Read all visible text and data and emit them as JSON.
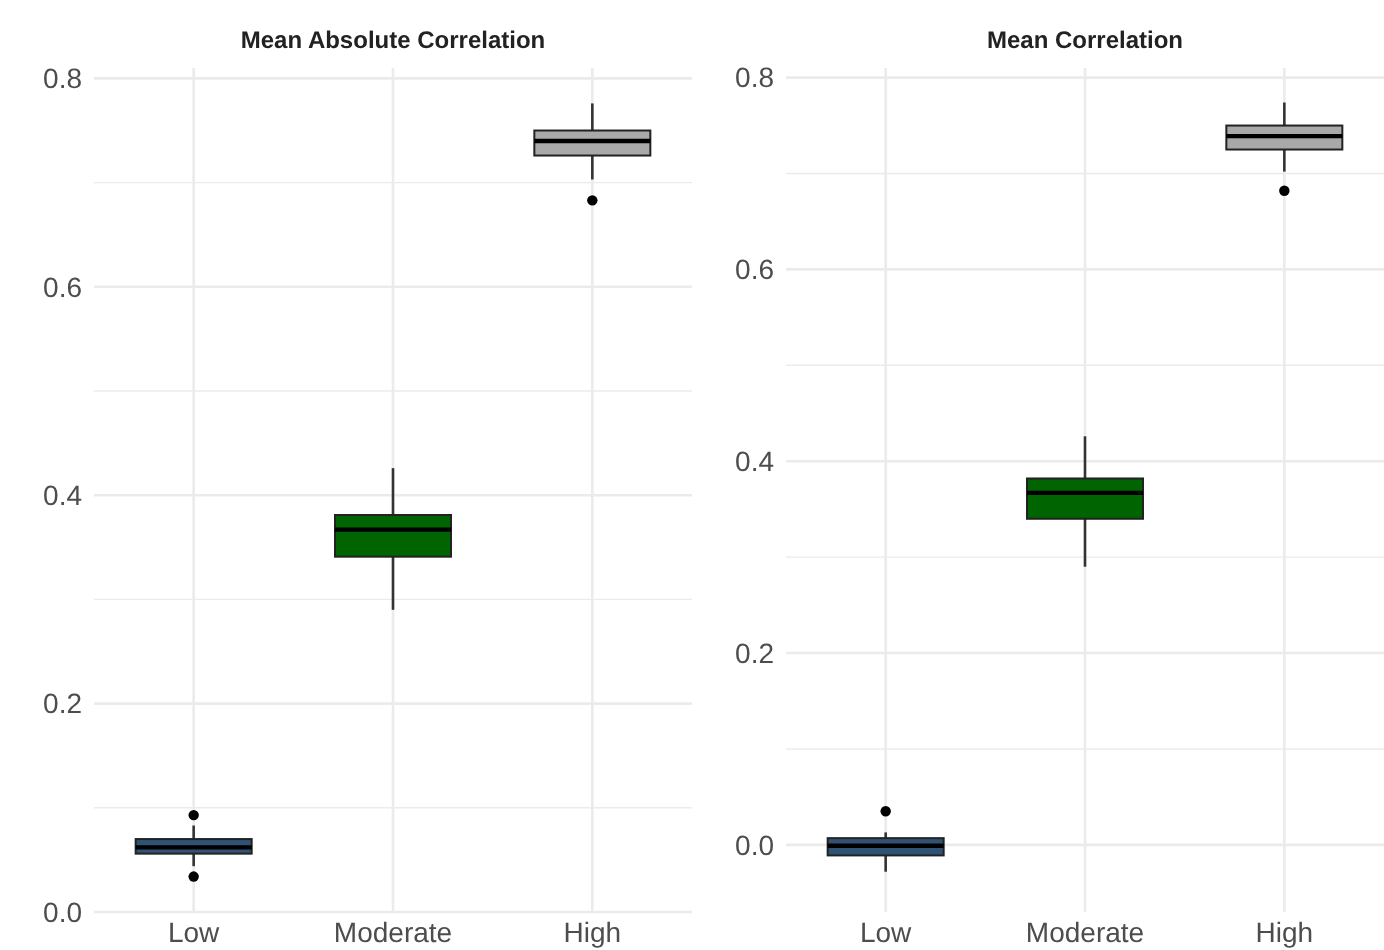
{
  "chart_data": [
    {
      "type": "box",
      "title": "Mean Absolute Correlation",
      "categories": [
        "Low",
        "Moderate",
        "High"
      ],
      "colors": [
        "#2f5275",
        "#006400",
        "#a9a9a9"
      ],
      "grid": true,
      "ylim": [
        0,
        0.81
      ],
      "yticks": [
        {
          "value": 0,
          "label": "0.0"
        },
        {
          "value": 0.1,
          "label": null
        },
        {
          "value": 0.2,
          "label": "0.2"
        },
        {
          "value": 0.3,
          "label": null
        },
        {
          "value": 0.4,
          "label": "0.4"
        },
        {
          "value": 0.5,
          "label": null
        },
        {
          "value": 0.6,
          "label": "0.6"
        },
        {
          "value": 0.7,
          "label": null
        },
        {
          "value": 0.8,
          "label": "0.8"
        }
      ],
      "boxes": [
        {
          "low": 0.044,
          "q1": 0.056,
          "median": 0.062,
          "q3": 0.07,
          "high": 0.083,
          "outliers": [
            0.093,
            0.034
          ]
        },
        {
          "low": 0.29,
          "q1": 0.341,
          "median": 0.367,
          "q3": 0.381,
          "high": 0.426
        },
        {
          "low": 0.703,
          "q1": 0.726,
          "median": 0.74,
          "q3": 0.75,
          "high": 0.776,
          "outliers": [
            0.683
          ]
        }
      ]
    },
    {
      "type": "box",
      "title": "Mean Correlation",
      "categories": [
        "Low",
        "Moderate",
        "High"
      ],
      "colors": [
        "#2f5275",
        "#006400",
        "#a9a9a9"
      ],
      "grid": true,
      "ylim": [
        -0.07,
        0.81
      ],
      "yticks": [
        {
          "value": 0,
          "label": "0.0"
        },
        {
          "value": 0.1,
          "label": null
        },
        {
          "value": 0.2,
          "label": "0.2"
        },
        {
          "value": 0.3,
          "label": null
        },
        {
          "value": 0.4,
          "label": "0.4"
        },
        {
          "value": 0.5,
          "label": null
        },
        {
          "value": 0.6,
          "label": "0.6"
        },
        {
          "value": 0.7,
          "label": null
        },
        {
          "value": 0.8,
          "label": "0.8"
        }
      ],
      "boxes": [
        {
          "low": -0.028,
          "q1": -0.011,
          "median": -0.001,
          "q3": 0.007,
          "high": 0.013,
          "outliers": [
            0.035
          ]
        },
        {
          "low": 0.29,
          "q1": 0.34,
          "median": 0.367,
          "q3": 0.382,
          "high": 0.426
        },
        {
          "low": 0.702,
          "q1": 0.725,
          "median": 0.739,
          "q3": 0.75,
          "high": 0.774,
          "outliers": [
            0.682
          ]
        }
      ]
    }
  ]
}
